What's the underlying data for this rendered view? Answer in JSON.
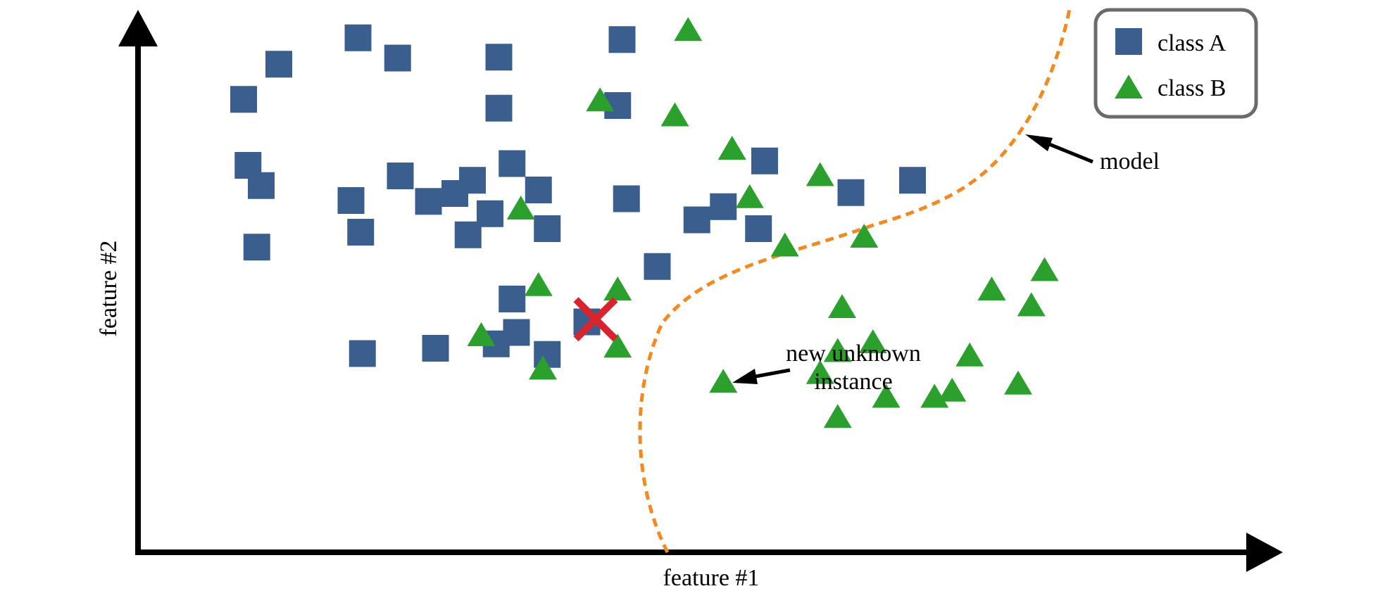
{
  "axes": {
    "x_label": "feature #1",
    "y_label": "feature #2"
  },
  "legend": {
    "items": [
      {
        "label": "class A",
        "marker": "square",
        "color": "#3a5f8f"
      },
      {
        "label": "class B",
        "marker": "triangle",
        "color": "#2ca02c"
      }
    ]
  },
  "annotations": {
    "model_label": "model",
    "new_instance_label_line1": "new unknown",
    "new_instance_label_line2": "instance"
  },
  "colors": {
    "class_a": "#3a5f8f",
    "class_b": "#2ca02c",
    "model_boundary": "#f28a21",
    "new_instance": "#d9232d",
    "axis": "#000000"
  },
  "chart_data": {
    "type": "scatter",
    "xlabel": "feature #1",
    "ylabel": "feature #2",
    "series": [
      {
        "name": "class A",
        "marker": "square",
        "points": [
          [
            120,
            515
          ],
          [
            250,
            585
          ],
          [
            410,
            563
          ],
          [
            125,
            440
          ],
          [
            160,
            555
          ],
          [
            295,
            562
          ],
          [
            135,
            347
          ],
          [
            253,
            364
          ],
          [
            140,
            417
          ],
          [
            242,
            400
          ],
          [
            298,
            428
          ],
          [
            330,
            399
          ],
          [
            400,
            385
          ],
          [
            375,
            361
          ],
          [
            425,
            442
          ],
          [
            550,
            583
          ],
          [
            545,
            508
          ],
          [
            360,
            408
          ],
          [
            255,
            226
          ],
          [
            410,
            505
          ],
          [
            380,
            423
          ],
          [
            338,
            232
          ],
          [
            407,
            237
          ],
          [
            455,
            412
          ],
          [
            425,
            288
          ],
          [
            430,
            250
          ],
          [
            510,
            262
          ],
          [
            555,
            402
          ],
          [
            635,
            378
          ],
          [
            665,
            393
          ],
          [
            590,
            325
          ],
          [
            705,
            368
          ],
          [
            880,
            423
          ],
          [
            810,
            409
          ],
          [
            712,
            445
          ],
          [
            465,
            368
          ],
          [
            465,
            225
          ]
        ]
      },
      {
        "name": "class B",
        "marker": "triangle",
        "points": [
          [
            435,
            392
          ],
          [
            525,
            515
          ],
          [
            455,
            305
          ],
          [
            390,
            248
          ],
          [
            460,
            210
          ],
          [
            545,
            235
          ],
          [
            610,
            498
          ],
          [
            675,
            460
          ],
          [
            545,
            300
          ],
          [
            665,
            195
          ],
          [
            735,
            350
          ],
          [
            695,
            405
          ],
          [
            800,
            280
          ],
          [
            775,
            430
          ],
          [
            825,
            360
          ],
          [
            835,
            240
          ],
          [
            775,
            205
          ],
          [
            850,
            178
          ],
          [
            905,
            178
          ],
          [
            925,
            185
          ],
          [
            795,
            230
          ],
          [
            970,
            300
          ],
          [
            945,
            225
          ],
          [
            1000,
            193
          ],
          [
            1030,
            322
          ],
          [
            1015,
            282
          ],
          [
            625,
            595
          ],
          [
            795,
            155
          ]
        ]
      },
      {
        "name": "new unknown instance",
        "marker": "x",
        "points": [
          [
            520,
            265
          ]
        ]
      }
    ]
  }
}
